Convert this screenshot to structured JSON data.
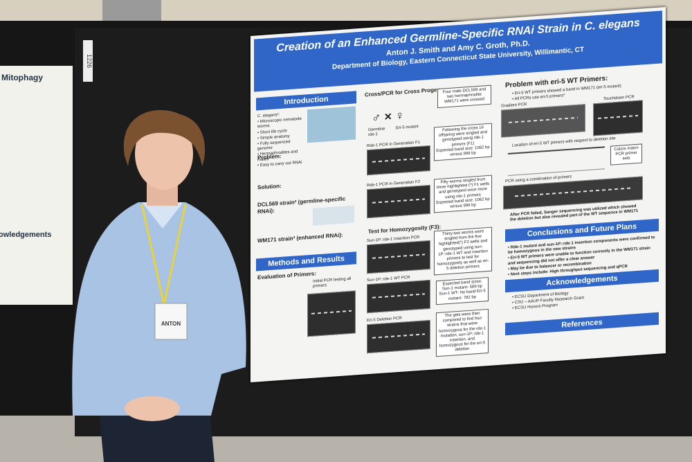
{
  "board_number": "1226",
  "left_poster": {
    "title": "Mitophagy",
    "heading": "owledgements"
  },
  "badge": "ANTON",
  "poster": {
    "title": "Creation of an Enhanced Germline-Specific RNAi Strain in C. elegans",
    "authors": "Anton J. Smith and Amy C. Groth, Ph.D.",
    "department": "Department of Biology, Eastern Connecticut State University, Willimantic, CT",
    "introduction": {
      "heading": "Introduction",
      "intro": "C. elegans¹:",
      "items": [
        "Microscopic nematode worms",
        "Short life cycle",
        "Simple anatomy",
        "Fully sequenced genome",
        "Hermaphrodites and males",
        "Easy to carry out RNAi"
      ],
      "problem": "Problem:",
      "solution": "Solution:",
      "strain": "DCL569 strain² (germline-specific RNAi):",
      "strain2": "WM171 strain³ (enhanced RNAi):"
    },
    "methods": {
      "heading": "Methods and Results",
      "evaluation": "Evaluation of Primers:",
      "gel": "Initial PCR testing all primers"
    },
    "cross": {
      "heading": "Cross/PCR for Cross Progeny:",
      "germline": "Germline rde-1",
      "mutant": "Eri-5 mutant",
      "gel1": "Rde-1 PCR in Generation F1",
      "gel2": "Rde-1 PCR in Generation F2",
      "step1": "Four male DCL569 and two hermaphrodite WM171 were crossed",
      "step2": "Following the cross 16 offspring were singled and genotyped using rde-1 primers (F1)",
      "band1": "Expected band size: 1062 bp versus 999 bp",
      "step3": "Fifty worms singled from three highlighted (*) F1 wells and genotyped once more using rde-1 primers",
      "band2": "Expected band size: 1062 bp versus 999 bp"
    },
    "homozygosity": {
      "heading": "Test for Homozygosity (F3):",
      "gel1": "Sun-1P::rde-1 Insertion PCR",
      "gel2": "Sun-1P::rde-1 WT PCR",
      "gel3": "Eri-5 Deletion PCR",
      "step": "Thirty-two worms were singled from the five highlighted(*) F2 wells and genotyped using sun-1P::rde-1 WT and insertion primers to test for homozygosity as well as eri-5 deletion primers",
      "bands": "Expected band sizes: Sun-1 mutant- 589 bp Sun-1 WT- No band Eri-5 mutant- 782 bp",
      "result": "The gels were then compared to find four strains that were homozygous for the rde-1 mutation, sun-1P::rde-1 insertion, and homozygous for the eri-5 deletion"
    },
    "problem": {
      "heading": "Problem with eri-5 WT Primers:",
      "items": [
        "Eri-5 WT primers showed a band in WM171 (eri-5 mutant)",
        "All PCRs use eri-5 primers*"
      ],
      "gradient": "Gradient PCR",
      "touchdown": "Touchdown PCR",
      "location": "Location of eri-5 WT primers with respect to deletion site",
      "colors": "Colors match PCR primer sets",
      "combination": "PCR using a combination of primers",
      "sanger": "After PCR failed, Sanger sequencing was utilized which showed the deletion but also revealed part of the WT sequence in WM171"
    },
    "conclusions": {
      "heading": "Conclusions and Future Plans",
      "items": [
        "Rde-1 mutant and sun-1P::rde-1 insertion components were confirmed to be homozygous in the new strains",
        "Eri-5 WT primers were unable to function correctly in the WM171 strain and sequencing did not offer a clear answer",
        "May be due to balancer or recombination",
        "Next steps include: High throughput sequencing and qPCR"
      ]
    },
    "acknowledgements": {
      "heading": "Acknowledgements",
      "items": [
        "ECSU Department of Biology",
        "CSU – AAUP Faculty Research Grant",
        "ECSU Honors Program"
      ]
    },
    "references": {
      "heading": "References"
    }
  }
}
